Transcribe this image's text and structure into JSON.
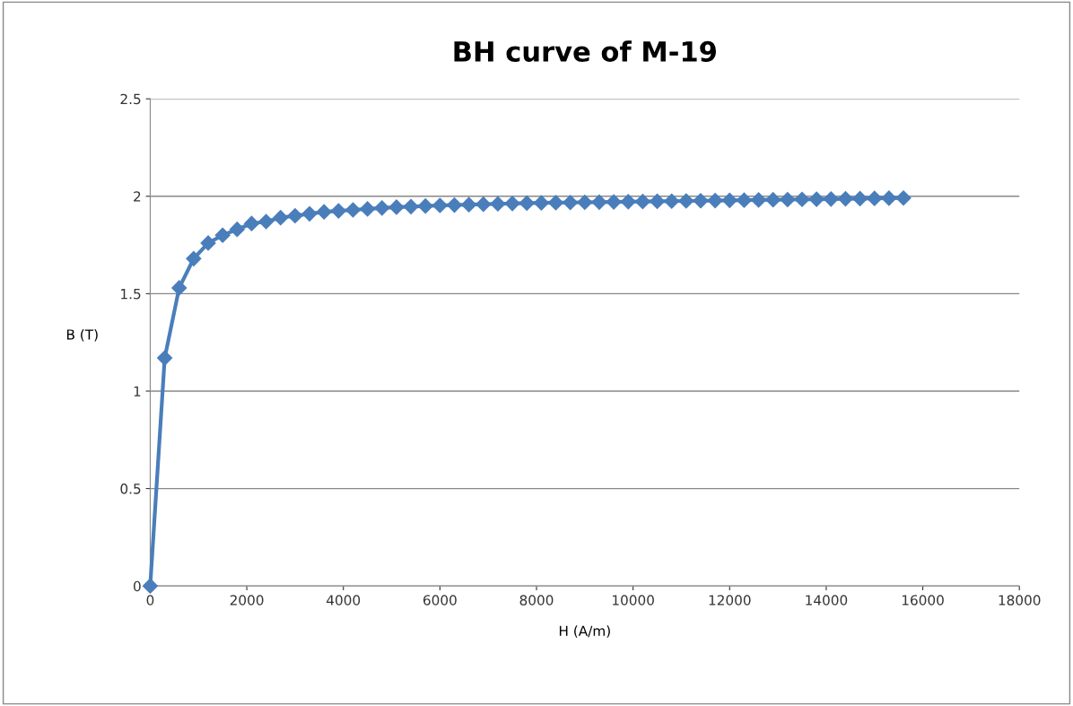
{
  "chart_data": {
    "type": "line",
    "title": "BH curve of M-19",
    "xlabel": "H (A/m)",
    "ylabel": "B (T)",
    "x": [
      0,
      300,
      600,
      900,
      1200,
      1500,
      1800,
      2100,
      2400,
      2700,
      3000,
      3300,
      3600,
      3900,
      4200,
      4500,
      4800,
      5100,
      5400,
      5700,
      6000,
      6300,
      6600,
      6900,
      7200,
      7500,
      7800,
      8100,
      8400,
      8700,
      9000,
      9300,
      9600,
      9900,
      10200,
      10500,
      10800,
      11100,
      11400,
      11700,
      12000,
      12300,
      12600,
      12900,
      13200,
      13500,
      13800,
      14100,
      14400,
      14700,
      15000,
      15300,
      15600
    ],
    "series": [
      {
        "color": "#4a7ebb",
        "values": [
          0,
          1.17,
          1.53,
          1.68,
          1.76,
          1.8,
          1.83,
          1.86,
          1.87,
          1.89,
          1.9,
          1.91,
          1.92,
          1.925,
          1.93,
          1.935,
          1.94,
          1.944,
          1.947,
          1.95,
          1.953,
          1.955,
          1.957,
          1.959,
          1.961,
          1.963,
          1.965,
          1.966,
          1.967,
          1.968,
          1.969,
          1.97,
          1.971,
          1.972,
          1.973,
          1.974,
          1.975,
          1.976,
          1.977,
          1.978,
          1.979,
          1.98,
          1.981,
          1.982,
          1.983,
          1.984,
          1.985,
          1.986,
          1.987,
          1.988,
          1.989,
          1.99,
          1.991
        ]
      }
    ],
    "xlim": [
      0,
      18000
    ],
    "xticks": [
      0,
      2000,
      4000,
      6000,
      8000,
      10000,
      12000,
      14000,
      16000,
      18000
    ],
    "ylim": [
      0,
      2.5
    ],
    "yticks": [
      0,
      0.5,
      1,
      1.5,
      2,
      2.5
    ],
    "grid": "y",
    "marker": "diamond",
    "line_style": "solid"
  }
}
